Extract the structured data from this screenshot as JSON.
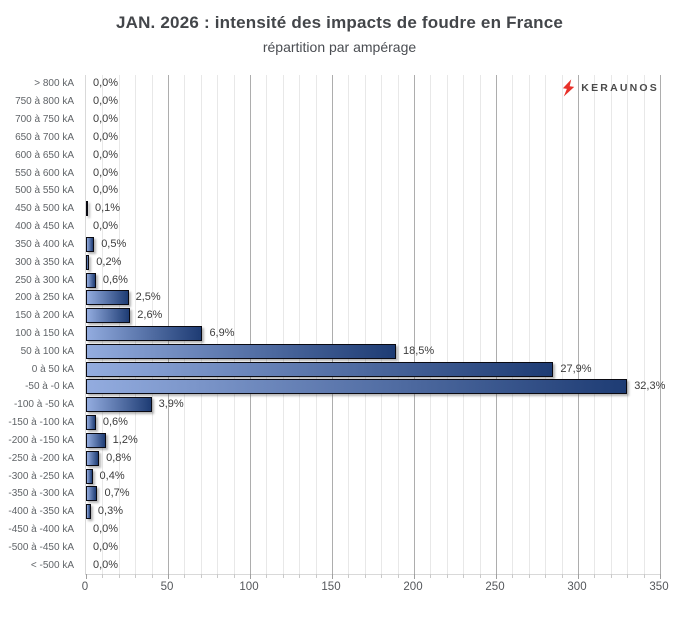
{
  "title": "JAN. 2026 : intensité des impacts de foudre en France",
  "subtitle": "répartition par ampérage",
  "logo": {
    "brand": "KERAUNOS",
    "icon": "lightning-bolt-icon",
    "bolt_color": "#e8312a",
    "text_color": "#4a4a4a"
  },
  "colors": {
    "bar_gradient_left": "#93acdf",
    "bar_gradient_right": "#1e3c74",
    "bar_border": "#0a0a12",
    "grid_minor": "#e8e8e8",
    "grid_major": "#adadad",
    "axis": "#d9d9d9",
    "title_text": "#43464a",
    "value_text": "#3c3c3c",
    "tick_text": "#54575b"
  },
  "chart_data": {
    "type": "bar",
    "orientation": "horizontal",
    "title": "JAN. 2026 : intensité des impacts de foudre en France",
    "subtitle": "répartition par ampérage",
    "xlabel": "",
    "ylabel": "",
    "legend": "none",
    "grid": "vertical, minor every 10 + major every 50",
    "xlim": [
      0,
      350
    ],
    "x_major_step": 50,
    "x_minor_step": 10,
    "x_major_ticks": [
      0,
      50,
      100,
      150,
      200,
      250,
      300,
      350
    ],
    "categories": [
      "> 800 kA",
      "750 à 800 kA",
      "700 à 750 kA",
      "650 à 700 kA",
      "600 à 650 kA",
      "550 à 600 kA",
      "500 à 550 kA",
      "450 à 500 kA",
      "400 à 450 kA",
      "350 à 400 kA",
      "300 à 350 kA",
      "250 à 300 kA",
      "200 à 250 kA",
      "150 à 200 kA",
      "100 à 150 kA",
      "50 à 100 kA",
      "0 à 50 kA",
      "-50 à -0 kA",
      "-100 à -50 kA",
      "-150 à -100 kA",
      "-200 à -150 kA",
      "-250 à -200 kA",
      "-300 à -250 kA",
      "-350 à -300 kA",
      "-400 à -350 kA",
      "-450 à -400 kA",
      "-500 à -450 kA",
      "< -500 kA"
    ],
    "values": [
      0,
      0,
      0,
      0,
      0,
      0,
      0,
      1,
      0,
      5,
      2,
      6,
      26,
      27,
      71,
      189,
      285,
      330,
      40,
      6,
      12,
      8,
      4,
      7,
      3,
      0,
      0,
      0
    ],
    "value_labels": [
      "0,0%",
      "0,0%",
      "0,0%",
      "0,0%",
      "0,0%",
      "0,0%",
      "0,0%",
      "0,1%",
      "0,0%",
      "0,5%",
      "0,2%",
      "0,6%",
      "2,5%",
      "2,6%",
      "6,9%",
      "18,5%",
      "27,9%",
      "32,3%",
      "3,9%",
      "0,6%",
      "1,2%",
      "0,8%",
      "0,4%",
      "0,7%",
      "0,3%",
      "0,0%",
      "0,0%",
      "0,0%"
    ]
  }
}
